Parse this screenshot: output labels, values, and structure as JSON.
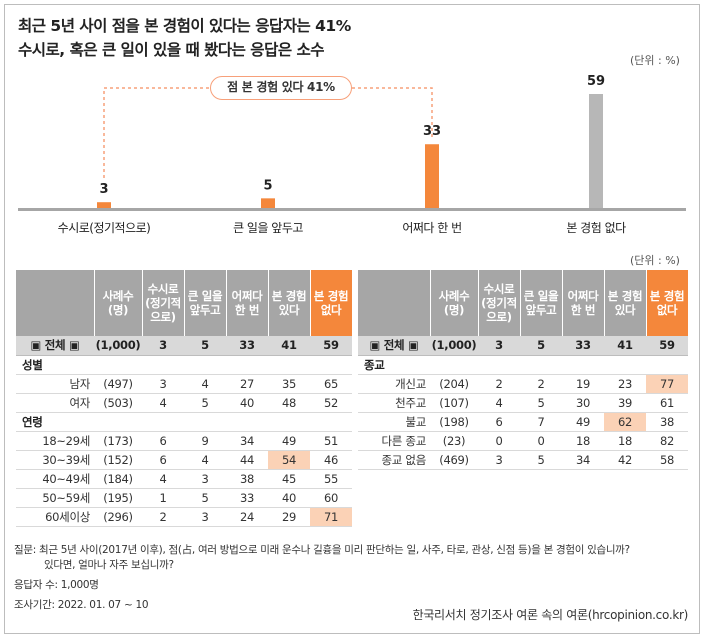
{
  "title_line1": "최근 5년 사이 점을 본 경험이 있다는 응답자는 41%",
  "title_line2": "수시로, 혹은 큰 일이 있을 때 봤다는 응답은 소수",
  "unit_label": "(단위 : %)",
  "callout_label": "점 본 경험 있다 41%",
  "colors": {
    "bar_accent": "#f4873b",
    "bar_gray": "#b7b7b7",
    "axis": "#a6a6a6",
    "highlight": "#fbd2b6",
    "callout_border": "#f7a07a"
  },
  "chart_data": {
    "type": "bar",
    "categories": [
      "수시로(정기적으로)",
      "큰 일을 앞두고",
      "어쩌다 한 번",
      "본 경험 없다"
    ],
    "values": [
      3,
      5,
      33,
      59
    ],
    "bar_colors": [
      "#f4873b",
      "#f4873b",
      "#f4873b",
      "#b7b7b7"
    ],
    "ylim": [
      0,
      59
    ]
  },
  "table_headers": [
    "사례수\n(명)",
    "수시로\n(정기적\n으로)",
    "큰 일을\n앞두고",
    "어쩌다\n한 번",
    "본 경험\n있다",
    "본 경험\n없다"
  ],
  "left_table": {
    "total": {
      "label": "▣ 전체 ▣",
      "n": "(1,000)",
      "v": [
        "3",
        "5",
        "33",
        "41",
        "59"
      ]
    },
    "groups": [
      {
        "name": "성별",
        "rows": [
          {
            "label": "남자",
            "n": "(497)",
            "v": [
              "3",
              "4",
              "27",
              "35",
              "65"
            ],
            "hl": []
          },
          {
            "label": "여자",
            "n": "(503)",
            "v": [
              "4",
              "5",
              "40",
              "48",
              "52"
            ],
            "hl": []
          }
        ]
      },
      {
        "name": "연령",
        "rows": [
          {
            "label": "18~29세",
            "n": "(173)",
            "v": [
              "6",
              "9",
              "34",
              "49",
              "51"
            ],
            "hl": []
          },
          {
            "label": "30~39세",
            "n": "(152)",
            "v": [
              "6",
              "4",
              "44",
              "54",
              "46"
            ],
            "hl": [
              3
            ]
          },
          {
            "label": "40~49세",
            "n": "(184)",
            "v": [
              "4",
              "3",
              "38",
              "45",
              "55"
            ],
            "hl": []
          },
          {
            "label": "50~59세",
            "n": "(195)",
            "v": [
              "1",
              "5",
              "33",
              "40",
              "60"
            ],
            "hl": []
          },
          {
            "label": "60세이상",
            "n": "(296)",
            "v": [
              "2",
              "3",
              "24",
              "29",
              "71"
            ],
            "hl": [
              4
            ]
          }
        ]
      }
    ]
  },
  "right_table": {
    "total": {
      "label": "▣ 전체 ▣",
      "n": "(1,000)",
      "v": [
        "3",
        "5",
        "33",
        "41",
        "59"
      ]
    },
    "groups": [
      {
        "name": "종교",
        "rows": [
          {
            "label": "개신교",
            "n": "(204)",
            "v": [
              "2",
              "2",
              "19",
              "23",
              "77"
            ],
            "hl": [
              4
            ]
          },
          {
            "label": "천주교",
            "n": "(107)",
            "v": [
              "4",
              "5",
              "30",
              "39",
              "61"
            ],
            "hl": []
          },
          {
            "label": "불교",
            "n": "(198)",
            "v": [
              "6",
              "7",
              "49",
              "62",
              "38"
            ],
            "hl": [
              3
            ]
          },
          {
            "label": "다른 종교",
            "n": "(23)",
            "v": [
              "0",
              "0",
              "18",
              "18",
              "82"
            ],
            "hl": []
          },
          {
            "label": "종교 없음",
            "n": "(469)",
            "v": [
              "3",
              "5",
              "34",
              "42",
              "58"
            ],
            "hl": []
          }
        ]
      }
    ]
  },
  "footer": {
    "question_line1": "질문:  최근 5년 사이(2017년 이후), 점(占, 여러 방법으로 미래 운수나 길흉을 미리 판단하는 일, 사주, 타로, 관상, 신점 등)을 본 경험이 있습니까?",
    "question_line2": "있다면, 얼마나 자주 보십니까?",
    "respondents": "응답자 수: 1,000명",
    "period": "조사기간: 2022. 01. 07 ~ 10",
    "source": "한국리서치 정기조사 여론 속의 여론(hrcopinion.co.kr)"
  }
}
